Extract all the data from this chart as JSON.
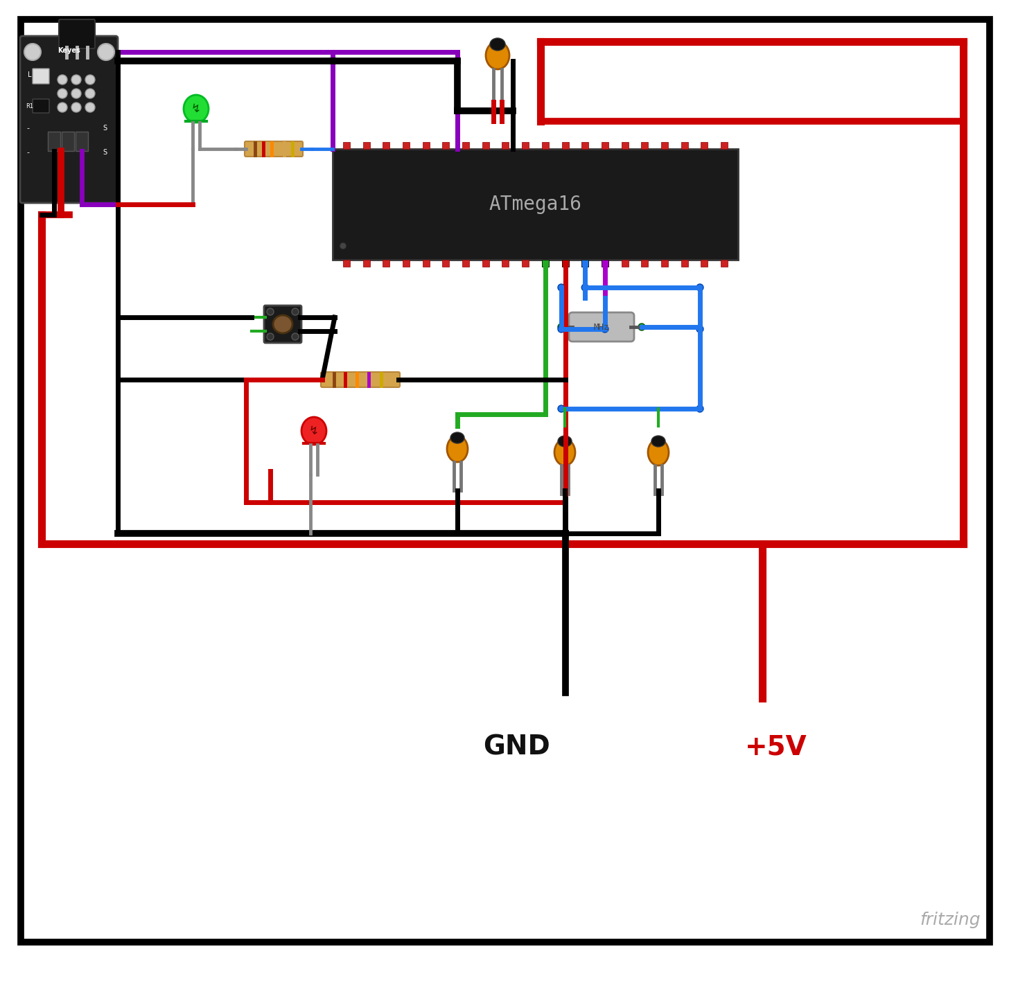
{
  "bg_color": "#ffffff",
  "border_color": "#000000",
  "border_lw": 7,
  "gnd_label": "GND",
  "vcc_label": "+5V",
  "gnd_color": "#111111",
  "vcc_color": "#cc0000",
  "fritzing_label": "fritzing",
  "fritzing_color": "#aaaaaa",
  "wire_lw": 5,
  "ic_color": "#1a1a1a",
  "ic_text": "ATmega16",
  "ic_text_color": "#aaaaaa",
  "sensor_board_color": "#222222",
  "red_color": "#cc0000",
  "black_color": "#000000",
  "green_color": "#22aa22",
  "blue_color": "#2277ee",
  "purple_color": "#8800bb",
  "orange_color": "#e08800",
  "gray_color": "#888888",
  "cyan_color": "#00aacc",
  "pin_color": "#cc2222",
  "pin_green": "#22aa44",
  "dark_red": "#880000"
}
